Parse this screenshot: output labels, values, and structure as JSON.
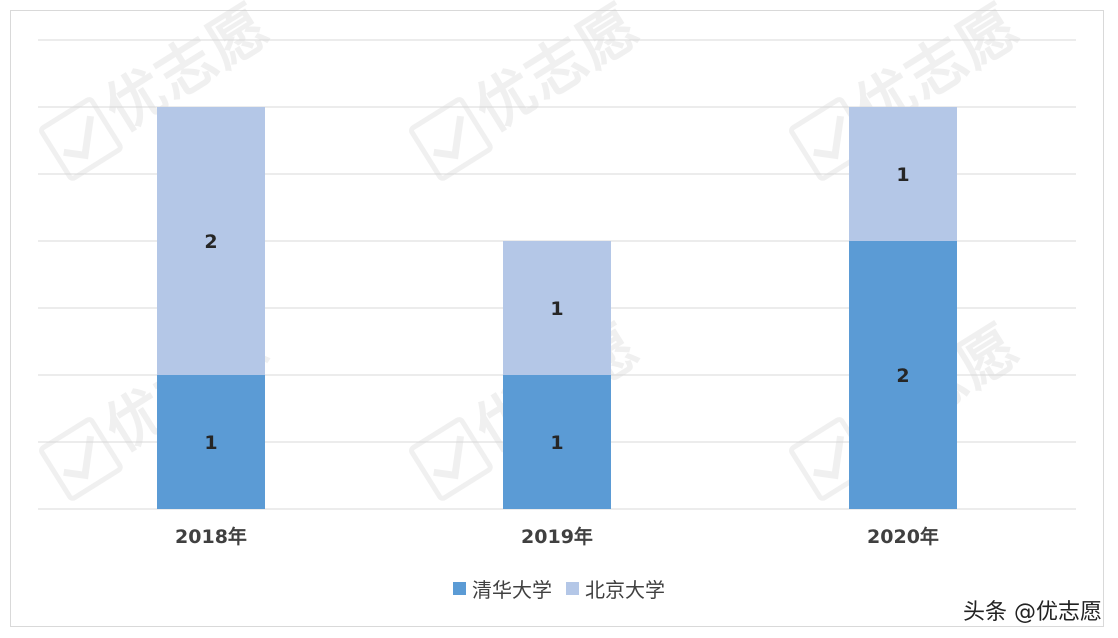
{
  "chart_data": {
    "type": "bar",
    "stacked": true,
    "categories": [
      "2018年",
      "2019年",
      "2020年"
    ],
    "series": [
      {
        "name": "清华大学",
        "color": "#5b9bd5",
        "values": [
          1,
          1,
          2
        ]
      },
      {
        "name": "北京大学",
        "color": "#b4c7e7",
        "values": [
          2,
          1,
          1
        ]
      }
    ],
    "ylim": [
      0,
      3.5
    ],
    "grid": true,
    "legend": "bottom"
  },
  "watermark": {
    "text": "优志愿"
  },
  "source_label": "头条 @优志愿"
}
